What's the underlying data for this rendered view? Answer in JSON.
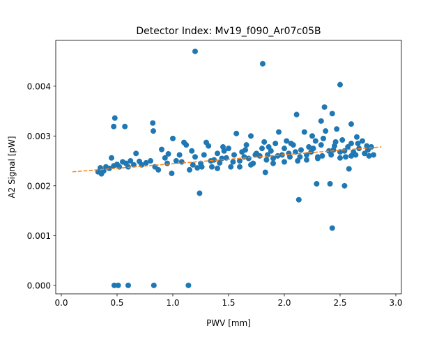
{
  "chart_data": {
    "type": "scatter",
    "title": "Detector Index: Mv19_f090_Ar07c05B",
    "xlabel": "PWV [mm]",
    "ylabel": "A2 Signal [pW]",
    "xlim": [
      -0.05,
      3.05
    ],
    "ylim": [
      -0.00017,
      0.00492
    ],
    "xticks": [
      0.0,
      0.5,
      1.0,
      1.5,
      2.0,
      2.5,
      3.0
    ],
    "xtick_labels": [
      "0.0",
      "0.5",
      "1.0",
      "1.5",
      "2.0",
      "2.5",
      "3.0"
    ],
    "yticks": [
      0.0,
      0.001,
      0.002,
      0.003,
      0.004
    ],
    "ytick_labels": [
      "0.000",
      "0.001",
      "0.002",
      "0.003",
      "0.004"
    ],
    "grid": false,
    "colors": {
      "points": "#1f77b4",
      "fit": "#ff7f0e"
    },
    "fit_line": {
      "style": "dashed",
      "x": [
        0.1,
        2.87
      ],
      "y": [
        0.00228,
        0.00278
      ]
    },
    "points": [
      [
        1.2,
        0.0047
      ],
      [
        1.806,
        0.00445
      ],
      [
        2.5,
        0.00403
      ],
      [
        0.48,
        0.00336
      ],
      [
        0.47,
        0.00319
      ],
      [
        0.57,
        0.00319
      ],
      [
        0.82,
        0.00326
      ],
      [
        0.825,
        0.0031
      ],
      [
        2.11,
        0.00343
      ],
      [
        2.36,
        0.00358
      ],
      [
        2.43,
        0.00345
      ],
      [
        2.33,
        0.0033
      ],
      [
        2.6,
        0.00324
      ],
      [
        1.24,
        0.00185
      ],
      [
        2.13,
        0.00172
      ],
      [
        2.29,
        0.00204
      ],
      [
        2.41,
        0.00204
      ],
      [
        2.54,
        0.002
      ],
      [
        2.43,
        0.00115
      ],
      [
        0.475,
        0.0
      ],
      [
        0.51,
        0.0
      ],
      [
        0.6,
        0.0
      ],
      [
        0.83,
        0.0
      ],
      [
        1.14,
        0.0
      ],
      [
        1.83,
        0.00227
      ],
      [
        0.99,
        0.00225
      ],
      [
        0.36,
        0.00224
      ],
      [
        2.58,
        0.00234
      ],
      [
        0.33,
        0.00228
      ],
      [
        0.35,
        0.00236
      ],
      [
        0.38,
        0.0023
      ],
      [
        0.4,
        0.00238
      ],
      [
        0.43,
        0.00235
      ],
      [
        0.45,
        0.00256
      ],
      [
        0.47,
        0.0024
      ],
      [
        0.5,
        0.00243
      ],
      [
        0.52,
        0.00238
      ],
      [
        0.55,
        0.00248
      ],
      [
        0.58,
        0.00245
      ],
      [
        0.62,
        0.0025
      ],
      [
        0.65,
        0.00242
      ],
      [
        0.67,
        0.00265
      ],
      [
        0.7,
        0.00249
      ],
      [
        0.76,
        0.00246
      ],
      [
        0.8,
        0.0025
      ],
      [
        0.84,
        0.00238
      ],
      [
        0.87,
        0.00232
      ],
      [
        0.9,
        0.00273
      ],
      [
        0.93,
        0.00256
      ],
      [
        0.96,
        0.00264
      ],
      [
        1.0,
        0.00295
      ],
      [
        1.03,
        0.0025
      ],
      [
        1.06,
        0.00262
      ],
      [
        1.1,
        0.00287
      ],
      [
        1.12,
        0.00282
      ],
      [
        1.15,
        0.00232
      ],
      [
        1.17,
        0.0027
      ],
      [
        1.2,
        0.00258
      ],
      [
        1.22,
        0.00236
      ],
      [
        1.25,
        0.00245
      ],
      [
        1.28,
        0.00262
      ],
      [
        1.3,
        0.00287
      ],
      [
        1.32,
        0.0028
      ],
      [
        1.35,
        0.00238
      ],
      [
        1.37,
        0.00252
      ],
      [
        1.4,
        0.00265
      ],
      [
        1.42,
        0.00246
      ],
      [
        1.45,
        0.00278
      ],
      [
        1.48,
        0.00256
      ],
      [
        1.5,
        0.00275
      ],
      [
        1.52,
        0.00238
      ],
      [
        1.55,
        0.00262
      ],
      [
        1.57,
        0.00305
      ],
      [
        1.6,
        0.0025
      ],
      [
        1.62,
        0.00268
      ],
      [
        1.65,
        0.00272
      ],
      [
        1.68,
        0.00255
      ],
      [
        1.7,
        0.003
      ],
      [
        1.72,
        0.00245
      ],
      [
        1.75,
        0.00265
      ],
      [
        1.78,
        0.0026
      ],
      [
        1.8,
        0.00275
      ],
      [
        1.82,
        0.00288
      ],
      [
        1.85,
        0.00262
      ],
      [
        1.88,
        0.0027
      ],
      [
        1.9,
        0.00255
      ],
      [
        1.92,
        0.00285
      ],
      [
        1.95,
        0.00308
      ],
      [
        1.98,
        0.00262
      ],
      [
        2.0,
        0.00275
      ],
      [
        2.02,
        0.0029
      ],
      [
        2.05,
        0.00258
      ],
      [
        2.08,
        0.00282
      ],
      [
        2.1,
        0.00268
      ],
      [
        2.12,
        0.0025
      ],
      [
        2.15,
        0.00272
      ],
      [
        2.18,
        0.00308
      ],
      [
        2.2,
        0.00262
      ],
      [
        2.22,
        0.00278
      ],
      [
        2.25,
        0.003
      ],
      [
        2.28,
        0.0029
      ],
      [
        2.3,
        0.00258
      ],
      [
        2.33,
        0.00282
      ],
      [
        2.35,
        0.00295
      ],
      [
        2.37,
        0.0031
      ],
      [
        2.4,
        0.0027
      ],
      [
        2.42,
        0.00262
      ],
      [
        2.45,
        0.0028
      ],
      [
        2.47,
        0.00314
      ],
      [
        2.5,
        0.00268
      ],
      [
        2.52,
        0.00292
      ],
      [
        2.55,
        0.00258
      ],
      [
        2.57,
        0.00278
      ],
      [
        2.6,
        0.00285
      ],
      [
        2.62,
        0.00268
      ],
      [
        2.65,
        0.00298
      ],
      [
        2.67,
        0.00275
      ],
      [
        2.7,
        0.0029
      ],
      [
        2.72,
        0.00265
      ],
      [
        2.75,
        0.00272
      ],
      [
        2.78,
        0.00278
      ],
      [
        2.8,
        0.00262
      ],
      [
        1.18,
        0.00242
      ],
      [
        1.26,
        0.00238
      ],
      [
        1.34,
        0.0025
      ],
      [
        1.44,
        0.00255
      ],
      [
        1.54,
        0.00248
      ],
      [
        1.64,
        0.00258
      ],
      [
        1.74,
        0.00262
      ],
      [
        1.84,
        0.00252
      ],
      [
        1.94,
        0.0026
      ],
      [
        2.04,
        0.00265
      ],
      [
        2.14,
        0.00258
      ],
      [
        2.24,
        0.00268
      ],
      [
        2.34,
        0.0026
      ],
      [
        2.44,
        0.00272
      ],
      [
        2.54,
        0.0027
      ],
      [
        2.64,
        0.00262
      ],
      [
        2.74,
        0.0028
      ],
      [
        1.6,
        0.00238
      ],
      [
        1.9,
        0.00245
      ],
      [
        2.2,
        0.00252
      ],
      [
        2.5,
        0.00256
      ],
      [
        1.4,
        0.00235
      ],
      [
        1.7,
        0.00242
      ],
      [
        2.0,
        0.00248
      ],
      [
        2.3,
        0.00255
      ],
      [
        2.6,
        0.0026
      ],
      [
        0.6,
        0.00238
      ],
      [
        0.72,
        0.00242
      ],
      [
        0.95,
        0.00245
      ],
      [
        1.08,
        0.00248
      ],
      [
        1.46,
        0.0027
      ],
      [
        1.66,
        0.00282
      ],
      [
        1.86,
        0.00278
      ],
      [
        2.06,
        0.00285
      ],
      [
        2.26,
        0.00275
      ],
      [
        2.46,
        0.00288
      ],
      [
        2.66,
        0.00285
      ],
      [
        2.76,
        0.0026
      ]
    ]
  }
}
